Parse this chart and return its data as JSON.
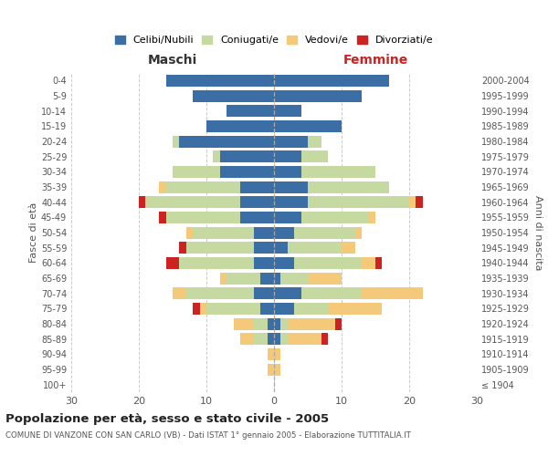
{
  "age_groups": [
    "100+",
    "95-99",
    "90-94",
    "85-89",
    "80-84",
    "75-79",
    "70-74",
    "65-69",
    "60-64",
    "55-59",
    "50-54",
    "45-49",
    "40-44",
    "35-39",
    "30-34",
    "25-29",
    "20-24",
    "15-19",
    "10-14",
    "5-9",
    "0-4"
  ],
  "birth_years": [
    "≤ 1904",
    "1905-1909",
    "1910-1914",
    "1915-1919",
    "1920-1924",
    "1925-1929",
    "1930-1934",
    "1935-1939",
    "1940-1944",
    "1945-1949",
    "1950-1954",
    "1955-1959",
    "1960-1964",
    "1965-1969",
    "1970-1974",
    "1975-1979",
    "1980-1984",
    "1985-1989",
    "1990-1994",
    "1995-1999",
    "2000-2004"
  ],
  "maschi": {
    "celibi": [
      0,
      0,
      0,
      1,
      1,
      2,
      3,
      2,
      3,
      3,
      3,
      5,
      5,
      5,
      8,
      8,
      14,
      10,
      7,
      12,
      16
    ],
    "coniugati": [
      0,
      0,
      0,
      2,
      2,
      8,
      10,
      5,
      11,
      10,
      9,
      11,
      14,
      11,
      7,
      1,
      1,
      0,
      0,
      0,
      0
    ],
    "vedovi": [
      0,
      1,
      1,
      2,
      3,
      1,
      2,
      1,
      0,
      0,
      1,
      0,
      0,
      1,
      0,
      0,
      0,
      0,
      0,
      0,
      0
    ],
    "divorziati": [
      0,
      0,
      0,
      0,
      0,
      1,
      0,
      0,
      2,
      1,
      0,
      1,
      1,
      0,
      0,
      0,
      0,
      0,
      0,
      0,
      0
    ]
  },
  "femmine": {
    "nubili": [
      0,
      0,
      0,
      1,
      1,
      3,
      4,
      1,
      3,
      2,
      3,
      4,
      5,
      5,
      4,
      4,
      5,
      10,
      4,
      13,
      17
    ],
    "coniugate": [
      0,
      0,
      0,
      1,
      1,
      5,
      9,
      4,
      10,
      8,
      9,
      10,
      15,
      12,
      11,
      4,
      2,
      0,
      0,
      0,
      0
    ],
    "vedove": [
      0,
      1,
      1,
      5,
      7,
      8,
      9,
      5,
      2,
      2,
      1,
      1,
      1,
      0,
      0,
      0,
      0,
      0,
      0,
      0,
      0
    ],
    "divorziate": [
      0,
      0,
      0,
      1,
      1,
      0,
      0,
      0,
      1,
      0,
      0,
      0,
      1,
      0,
      0,
      0,
      0,
      0,
      0,
      0,
      0
    ]
  },
  "colors": {
    "celibi": "#3a6ea5",
    "coniugati": "#c5d9a0",
    "vedovi": "#f5c97a",
    "divorziati": "#cc2222"
  },
  "xlim": 30,
  "title": "Popolazione per età, sesso e stato civile - 2005",
  "subtitle": "COMUNE DI VANZONE CON SAN CARLO (VB) - Dati ISTAT 1° gennaio 2005 - Elaborazione TUTTITALIA.IT",
  "ylabel_left": "Fasce di età",
  "ylabel_right": "Anni di nascita",
  "xlabel_left": "Maschi",
  "xlabel_right": "Femmine",
  "bg_color": "#ffffff",
  "grid_color": "#cccccc"
}
